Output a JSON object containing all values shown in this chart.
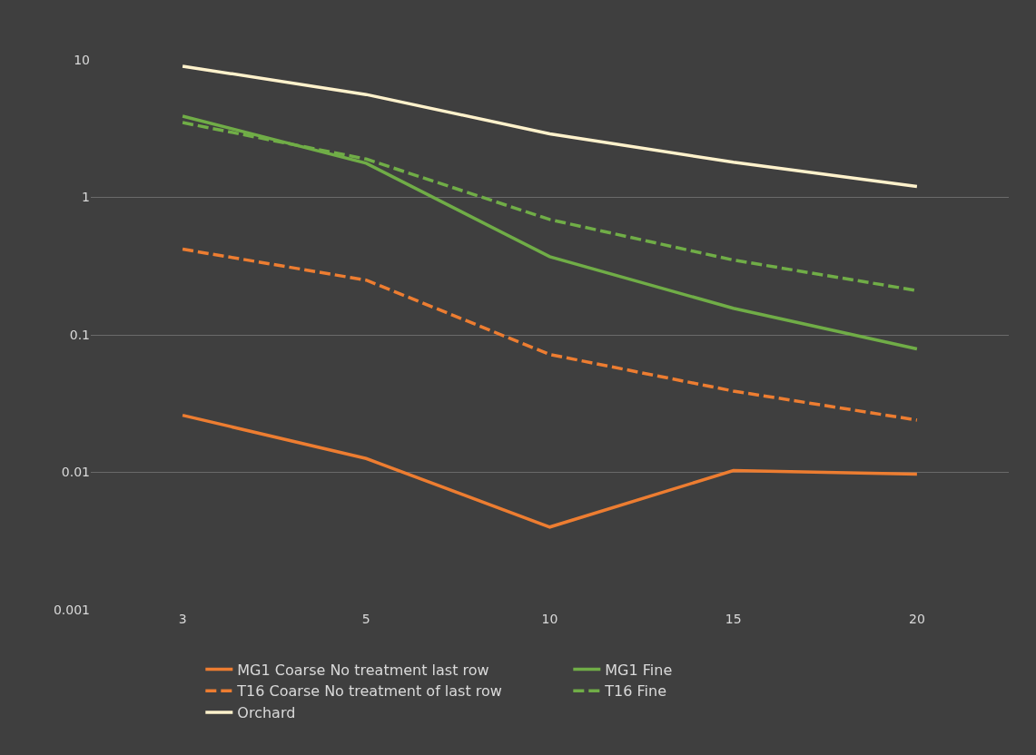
{
  "chart_data": {
    "type": "line",
    "categories": [
      "3",
      "5",
      "10",
      "15",
      "20"
    ],
    "series": [
      {
        "name": "MG1 Coarse No treatment last row",
        "color": "#ed7d31",
        "line_style": "solid",
        "values": [
          0.026,
          0.0126,
          0.004,
          0.0103,
          0.0097
        ]
      },
      {
        "name": "MG1 Fine",
        "color": "#70ad47",
        "line_style": "solid",
        "values": [
          3.9,
          1.77,
          0.37,
          0.156,
          0.079
        ]
      },
      {
        "name": "T16 Coarse No treatment of last row",
        "color": "#ed7d31",
        "line_style": "dashed",
        "values": [
          0.42,
          0.25,
          0.072,
          0.039,
          0.024
        ]
      },
      {
        "name": "T16 Fine",
        "color": "#70ad47",
        "line_style": "dashed",
        "values": [
          3.5,
          1.9,
          0.69,
          0.35,
          0.21
        ]
      },
      {
        "name": "Orchard",
        "color": "#fff2cc",
        "line_style": "solid",
        "values": [
          9.0,
          5.6,
          2.9,
          1.8,
          1.2
        ]
      }
    ],
    "log": "y",
    "ylim": [
      0.001,
      10
    ],
    "yticks": [
      0.001,
      0.01,
      0.1,
      1,
      10
    ],
    "grid": "y",
    "legend": "bottom"
  }
}
